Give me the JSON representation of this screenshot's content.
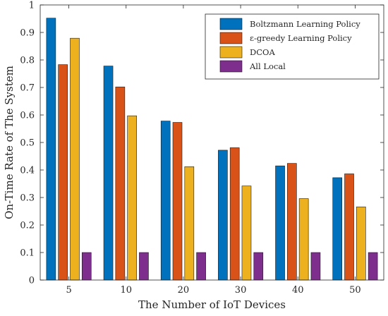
{
  "chart_data": {
    "type": "bar",
    "xlabel": "The Number of IoT Devices",
    "ylabel": "On-Time Rate of The System",
    "categories": [
      "5",
      "10",
      "20",
      "30",
      "40",
      "50"
    ],
    "ylim": [
      0,
      1
    ],
    "yticks": [
      "0",
      "0.1",
      "0.2",
      "0.3",
      "0.4",
      "0.5",
      "0.6",
      "0.7",
      "0.8",
      "0.9",
      "1"
    ],
    "grid": false,
    "legend_position": "top-right",
    "series": [
      {
        "name": "Boltzmann Learning Policy",
        "color": "#0072BD",
        "values": [
          0.952,
          0.778,
          0.578,
          0.472,
          0.415,
          0.372
        ]
      },
      {
        "name": "ε-greedy Learning Policy",
        "color": "#D95319",
        "values": [
          0.783,
          0.702,
          0.573,
          0.481,
          0.424,
          0.386
        ]
      },
      {
        "name": "DCOA",
        "color": "#EDB120",
        "values": [
          0.879,
          0.597,
          0.412,
          0.342,
          0.296,
          0.266
        ]
      },
      {
        "name": "All Local",
        "color": "#7E2F8E",
        "values": [
          0.1,
          0.1,
          0.1,
          0.1,
          0.1,
          0.1
        ]
      }
    ]
  }
}
